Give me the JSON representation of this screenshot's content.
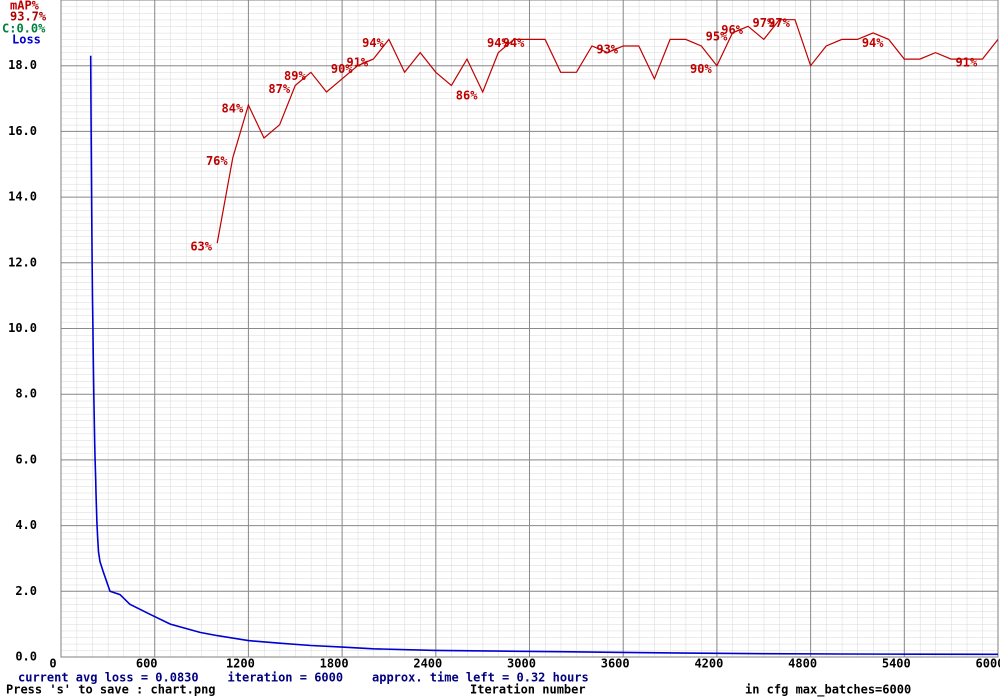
{
  "chart_data": {
    "type": "line",
    "xlabel": "Iteration number",
    "legend_notes": [
      {
        "text": "93.7%",
        "color": "#b00000"
      },
      {
        "text": "C:0.0%",
        "color": "#008040"
      }
    ],
    "status": [
      "current avg loss = 0.0830    iteration = 6000    approx. time left = 0.32 hours",
      "Press 's' to save : chart.png",
      "in cfg max_batches=6000"
    ],
    "xlim": [
      0,
      6000
    ],
    "xticks": [
      0,
      600,
      1200,
      1800,
      2400,
      3000,
      3600,
      4200,
      4800,
      5400,
      6000
    ],
    "ylim": [
      0,
      20
    ],
    "yticks": [
      {
        "value": 0,
        "label": "0.0"
      },
      {
        "value": 2,
        "label": "2.0"
      },
      {
        "value": 4,
        "label": "4.0"
      },
      {
        "value": 6,
        "label": "6.0"
      },
      {
        "value": 8,
        "label": "8.0"
      },
      {
        "value": 10,
        "label": "10.0"
      },
      {
        "value": 12,
        "label": "12.0"
      },
      {
        "value": 14,
        "label": "14.0"
      },
      {
        "value": 16,
        "label": "16.0"
      },
      {
        "value": 18,
        "label": "18.0"
      }
    ],
    "y2lim": [
      0,
      100
    ],
    "grid": true,
    "series": [
      {
        "name": "mAP%",
        "color": "#c00000",
        "axis": "y2",
        "x": [
          1000,
          1100,
          1200,
          1300,
          1400,
          1500,
          1600,
          1700,
          1800,
          1900,
          2000,
          2100,
          2200,
          2300,
          2400,
          2500,
          2600,
          2700,
          2800,
          2900,
          3000,
          3100,
          3200,
          3300,
          3400,
          3500,
          3600,
          3700,
          3800,
          3900,
          4000,
          4100,
          4200,
          4300,
          4400,
          4500,
          4600,
          4700,
          4800,
          4900,
          5000,
          5100,
          5200,
          5300,
          5400,
          5500,
          5600,
          5700,
          5800,
          5900,
          6000
        ],
        "values": [
          63,
          76,
          84,
          79,
          81,
          87,
          89,
          86,
          88,
          90,
          91,
          94,
          89,
          92,
          89,
          87,
          91,
          86,
          92,
          94,
          94,
          94,
          89,
          89,
          93,
          92,
          93,
          93,
          88,
          94,
          94,
          93,
          90,
          95,
          96,
          94,
          97,
          97,
          90,
          93,
          94,
          94,
          95,
          94,
          91,
          91,
          92,
          91,
          91,
          91,
          94
        ],
        "value_labels": [
          "63%",
          "76%",
          "84%",
          null,
          null,
          "87%",
          "89%",
          null,
          null,
          "90%",
          "91%",
          "94%",
          null,
          null,
          null,
          null,
          null,
          "86%",
          null,
          "94%",
          "94%",
          null,
          null,
          null,
          null,
          null,
          "93%",
          null,
          null,
          null,
          null,
          null,
          "90%",
          "95%",
          "96%",
          null,
          "97%",
          "97%",
          null,
          null,
          null,
          null,
          null,
          "94%",
          null,
          null,
          null,
          null,
          null,
          "91%",
          null
        ]
      },
      {
        "name": "Loss",
        "color": "#0000d0",
        "x": [
          190,
          192,
          194,
          196,
          198,
          200,
          202,
          204,
          206,
          208,
          210,
          212,
          214,
          216,
          218,
          220,
          222,
          224,
          226,
          228,
          230,
          235,
          240,
          250,
          270,
          314,
          378,
          442,
          570,
          700,
          890,
          1000,
          1200,
          1400,
          1600,
          1800,
          2000,
          2400,
          2800,
          3200,
          3600,
          4000,
          4500,
          5000,
          5500,
          6000
        ],
        "values": [
          18.3,
          16.7,
          15.3,
          14.0,
          12.8,
          11.8,
          10.9,
          10.1,
          9.3,
          8.6,
          8.0,
          7.5,
          7.0,
          6.5,
          6.1,
          5.7,
          5.4,
          5.0,
          4.7,
          4.4,
          4.1,
          3.6,
          3.2,
          2.9,
          2.6,
          2.0,
          1.9,
          1.6,
          1.3,
          1.0,
          0.75,
          0.65,
          0.5,
          0.42,
          0.35,
          0.3,
          0.25,
          0.2,
          0.18,
          0.16,
          0.14,
          0.12,
          0.1,
          0.09,
          0.085,
          0.083
        ]
      }
    ]
  }
}
